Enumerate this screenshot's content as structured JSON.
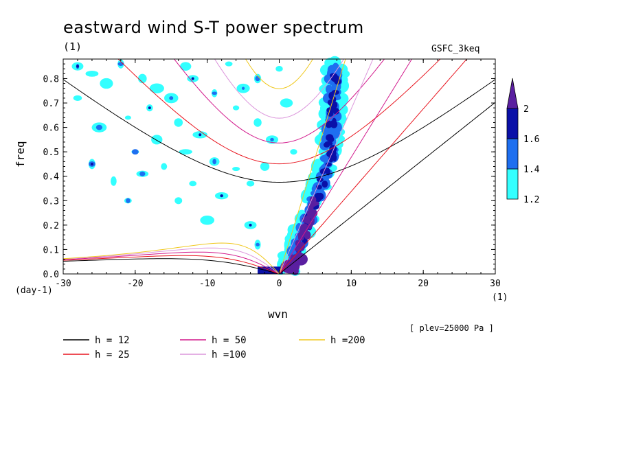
{
  "header": {
    "title": "eastward wind S-T power spectrum",
    "subtitle_left": "(1)",
    "subtitle_right": "GSFC_3keq",
    "level_note": "[ plev=25000 Pa ]"
  },
  "chart_data": {
    "type": "heatmap",
    "title": "eastward wind S-T power spectrum",
    "xlabel": "wvn",
    "ylabel": "freq",
    "x_unit": "(1)",
    "y_unit": "(day-1)",
    "xlim": [
      -30,
      30
    ],
    "ylim": [
      0,
      0.88
    ],
    "x_ticks": [
      -30,
      -20,
      -10,
      0,
      10,
      20,
      30
    ],
    "x_tick_labels": [
      "-30",
      "-20",
      "-10",
      "0",
      "10",
      "20",
      "30"
    ],
    "y_ticks": [
      0,
      0.1,
      0.2,
      0.3,
      0.4,
      0.5,
      0.6,
      0.7,
      0.8
    ],
    "y_tick_labels": [
      "0.0",
      "0.1",
      "0.2",
      "0.3",
      "0.4",
      "0.5",
      "0.6",
      "0.7",
      "0.8"
    ],
    "grid": false,
    "colorbar": {
      "levels": [
        1.2,
        1.4,
        1.6,
        2
      ],
      "labels": [
        "1.2",
        "1.4",
        "1.6",
        "2"
      ],
      "colors": [
        "#33ffff",
        "#1e6ff0",
        "#0a10a8",
        "#5a1fa0"
      ]
    },
    "dispersion_curves": [
      {
        "name": "h = 12",
        "h": 12,
        "color": "#000000"
      },
      {
        "name": "h = 25",
        "h": 25,
        "color": "#e8141e"
      },
      {
        "name": "h = 50",
        "h": 50,
        "color": "#d2198c"
      },
      {
        "name": "h =100",
        "h": 100,
        "color": "#dc96dc"
      },
      {
        "name": "h =200",
        "h": 200,
        "color": "#f0c81e"
      }
    ],
    "features": [
      {
        "name": "kelvin-ridge",
        "description": "strong power along positive wavenumbers, wvn 0 to 10, freq 0 to 0.88"
      },
      {
        "name": "low-frequency-maximum",
        "x_range": [
          -3,
          8
        ],
        "y_range": [
          0,
          0.12
        ]
      }
    ]
  }
}
